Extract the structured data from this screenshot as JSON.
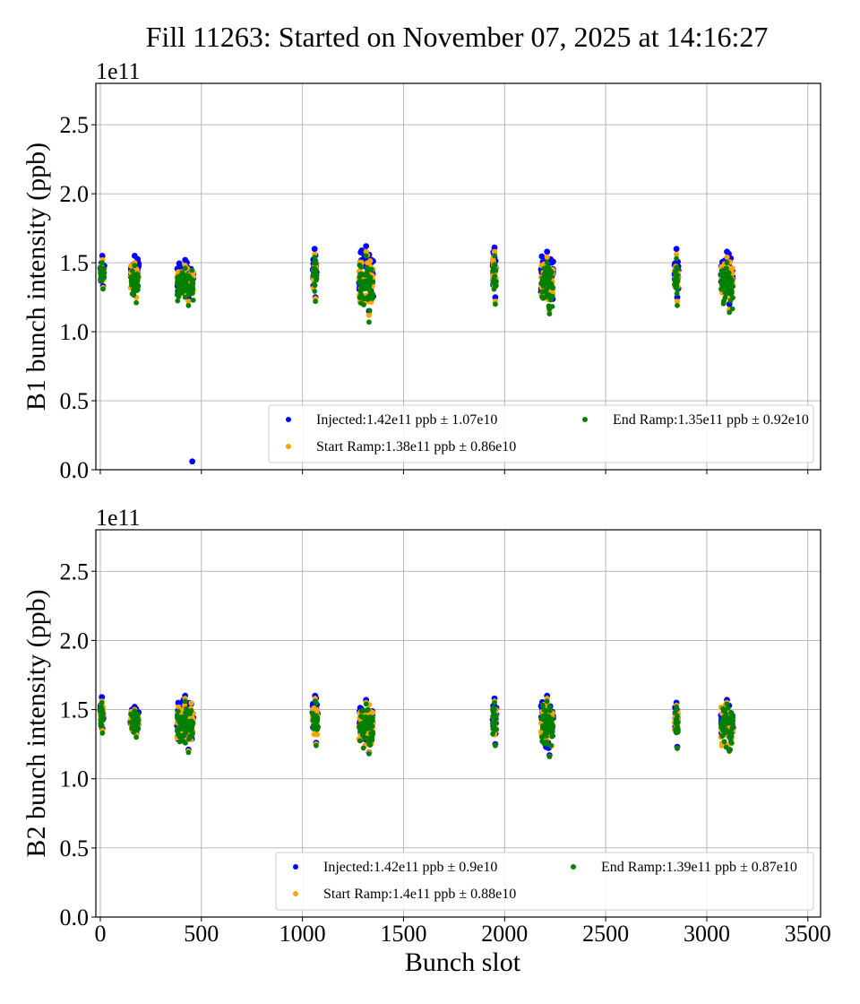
{
  "figure": {
    "title": "Fill 11263: Started on November 07, 2025 at 14:16:27"
  },
  "colors": {
    "injected": "#0000ff",
    "start_ramp": "#ffa500",
    "end_ramp": "#008000",
    "grid": "#b0b0b0",
    "legend_border": "#cccccc"
  },
  "chart_data": [
    {
      "type": "scatter",
      "id": "b1",
      "title": "",
      "xlabel": "",
      "ylabel": "B1 bunch intensity (ppb)",
      "y_offset_label": "1e11",
      "xlim": [
        -22,
        3563
      ],
      "ylim": [
        0.0,
        2.8
      ],
      "xticks": [
        0,
        500,
        1000,
        1500,
        2000,
        2500,
        3000,
        3500
      ],
      "xtick_labels_visible": false,
      "yticks": [
        0.0,
        0.5,
        1.0,
        1.5,
        2.0,
        2.5
      ],
      "ytick_labels": [
        "0.0",
        "0.5",
        "1.0",
        "1.5",
        "2.0",
        "2.5"
      ],
      "grid": true,
      "legend_position": "lower-right",
      "legend": [
        {
          "key": "injected",
          "label": "Injected:1.42e11 ppb ± 1.07e10"
        },
        {
          "key": "start_ramp",
          "label": "Start Ramp:1.38e11 ppb ± 0.86e10"
        },
        {
          "key": "end_ramp",
          "label": "End Ramp:1.35e11 ppb ± 0.92e10"
        }
      ],
      "clusters": [
        {
          "x_range": [
            0,
            20
          ],
          "injected": [
            1.33,
            1.55
          ],
          "start_ramp": [
            1.32,
            1.52
          ],
          "end_ramp": [
            1.31,
            1.5
          ]
        },
        {
          "x_range": [
            150,
            190
          ],
          "injected": [
            1.3,
            1.55
          ],
          "start_ramp": [
            1.25,
            1.5
          ],
          "end_ramp": [
            1.21,
            1.48
          ]
        },
        {
          "x_range": [
            380,
            460
          ],
          "injected": [
            1.25,
            1.52
          ],
          "start_ramp": [
            1.22,
            1.48
          ],
          "end_ramp": [
            1.19,
            1.46
          ]
        },
        {
          "x_range": [
            1050,
            1070
          ],
          "injected": [
            1.25,
            1.6
          ],
          "start_ramp": [
            1.24,
            1.56
          ],
          "end_ramp": [
            1.22,
            1.54
          ]
        },
        {
          "x_range": [
            1280,
            1350
          ],
          "injected": [
            1.15,
            1.62
          ],
          "start_ramp": [
            1.12,
            1.58
          ],
          "end_ramp": [
            1.07,
            1.55
          ]
        },
        {
          "x_range": [
            1940,
            1960
          ],
          "injected": [
            1.25,
            1.61
          ],
          "start_ramp": [
            1.22,
            1.58
          ],
          "end_ramp": [
            1.2,
            1.55
          ]
        },
        {
          "x_range": [
            2180,
            2240
          ],
          "injected": [
            1.18,
            1.58
          ],
          "start_ramp": [
            1.15,
            1.54
          ],
          "end_ramp": [
            1.13,
            1.5
          ]
        },
        {
          "x_range": [
            2840,
            2860
          ],
          "injected": [
            1.25,
            1.6
          ],
          "start_ramp": [
            1.22,
            1.56
          ],
          "end_ramp": [
            1.19,
            1.53
          ]
        },
        {
          "x_range": [
            3070,
            3130
          ],
          "injected": [
            1.2,
            1.58
          ],
          "start_ramp": [
            1.16,
            1.54
          ],
          "end_ramp": [
            1.14,
            1.5
          ]
        }
      ],
      "outliers": [
        {
          "series": "injected",
          "x": 455,
          "y": 0.06
        }
      ]
    },
    {
      "type": "scatter",
      "id": "b2",
      "title": "",
      "xlabel": "Bunch slot",
      "ylabel": "B2 bunch intensity (ppb)",
      "y_offset_label": "1e11",
      "xlim": [
        -22,
        3563
      ],
      "ylim": [
        0.0,
        2.8
      ],
      "xticks": [
        0,
        500,
        1000,
        1500,
        2000,
        2500,
        3000,
        3500
      ],
      "xtick_labels": [
        "0",
        "500",
        "1000",
        "1500",
        "2000",
        "2500",
        "3000",
        "3500"
      ],
      "xtick_labels_visible": true,
      "yticks": [
        0.0,
        0.5,
        1.0,
        1.5,
        2.0,
        2.5
      ],
      "ytick_labels": [
        "0.0",
        "0.5",
        "1.0",
        "1.5",
        "2.0",
        "2.5"
      ],
      "grid": true,
      "legend_position": "lower-right",
      "legend": [
        {
          "key": "injected",
          "label": "Injected:1.42e11 ppb ± 0.9e10"
        },
        {
          "key": "start_ramp",
          "label": "Start Ramp:1.4e11 ppb ± 0.88e10"
        },
        {
          "key": "end_ramp",
          "label": "End Ramp:1.39e11 ppb ± 0.87e10"
        }
      ],
      "clusters": [
        {
          "x_range": [
            0,
            15
          ],
          "injected": [
            1.36,
            1.59
          ],
          "start_ramp": [
            1.35,
            1.56
          ],
          "end_ramp": [
            1.33,
            1.55
          ]
        },
        {
          "x_range": [
            150,
            190
          ],
          "injected": [
            1.33,
            1.52
          ],
          "start_ramp": [
            1.32,
            1.5
          ],
          "end_ramp": [
            1.3,
            1.49
          ]
        },
        {
          "x_range": [
            380,
            460
          ],
          "injected": [
            1.21,
            1.6
          ],
          "start_ramp": [
            1.2,
            1.58
          ],
          "end_ramp": [
            1.19,
            1.56
          ]
        },
        {
          "x_range": [
            1050,
            1075
          ],
          "injected": [
            1.26,
            1.6
          ],
          "start_ramp": [
            1.25,
            1.58
          ],
          "end_ramp": [
            1.24,
            1.56
          ]
        },
        {
          "x_range": [
            1280,
            1350
          ],
          "injected": [
            1.19,
            1.57
          ],
          "start_ramp": [
            1.19,
            1.55
          ],
          "end_ramp": [
            1.18,
            1.54
          ]
        },
        {
          "x_range": [
            1940,
            1960
          ],
          "injected": [
            1.25,
            1.58
          ],
          "start_ramp": [
            1.24,
            1.56
          ],
          "end_ramp": [
            1.24,
            1.55
          ]
        },
        {
          "x_range": [
            2180,
            2240
          ],
          "injected": [
            1.17,
            1.6
          ],
          "start_ramp": [
            1.16,
            1.58
          ],
          "end_ramp": [
            1.16,
            1.56
          ]
        },
        {
          "x_range": [
            2840,
            2860
          ],
          "injected": [
            1.23,
            1.55
          ],
          "start_ramp": [
            1.22,
            1.53
          ],
          "end_ramp": [
            1.22,
            1.52
          ]
        },
        {
          "x_range": [
            3070,
            3130
          ],
          "injected": [
            1.21,
            1.57
          ],
          "start_ramp": [
            1.2,
            1.55
          ],
          "end_ramp": [
            1.2,
            1.54
          ]
        }
      ],
      "outliers": []
    }
  ]
}
